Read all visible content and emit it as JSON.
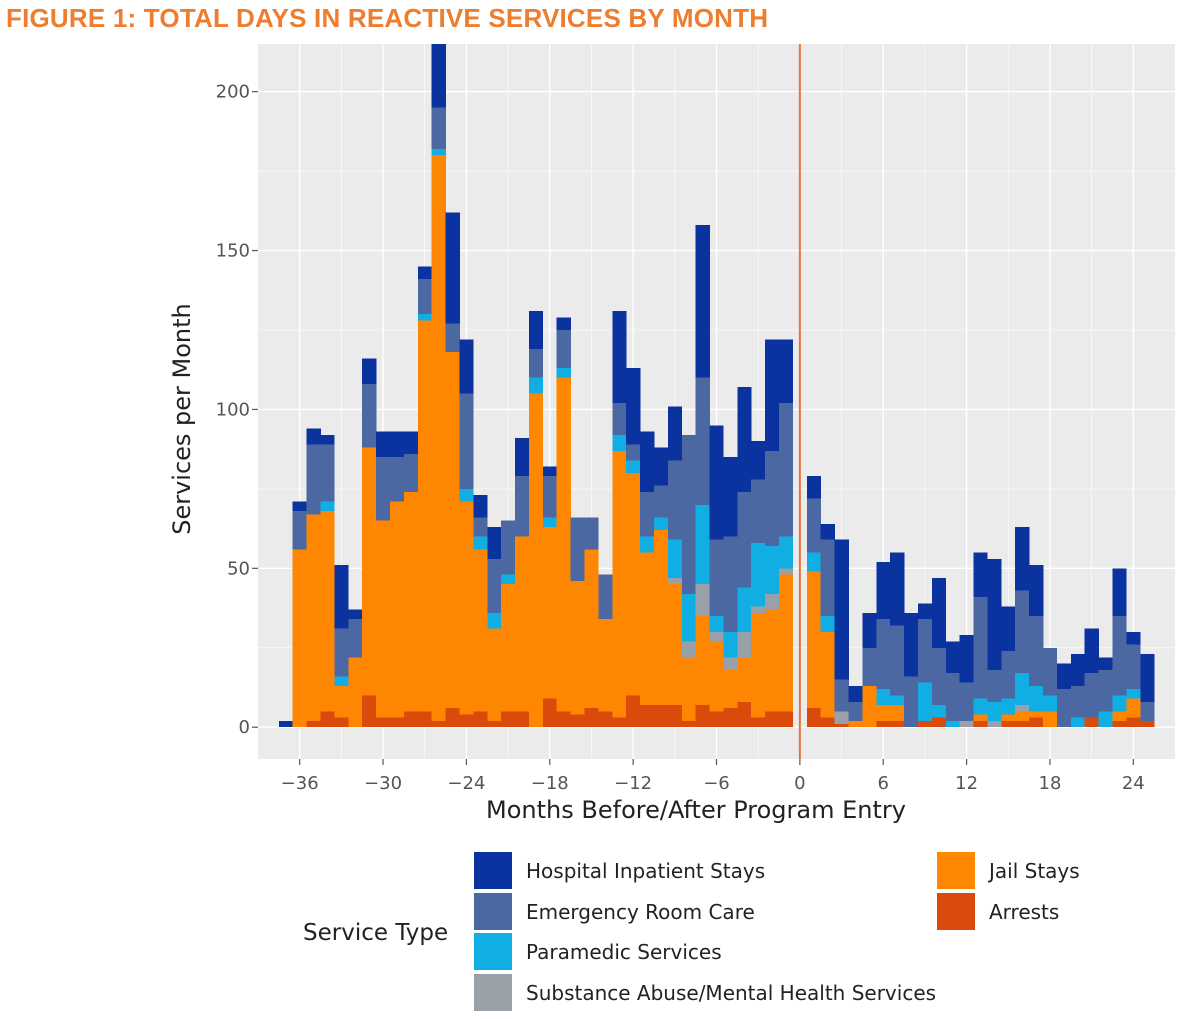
{
  "figure": {
    "title": "FIGURE 1: TOTAL DAYS IN REACTIVE SERVICES BY MONTH"
  },
  "colors": {
    "hospital": "#0b33a0",
    "er": "#4b68a3",
    "paramedic": "#11aee3",
    "substance": "#9aa0a8",
    "jail": "#ff8600",
    "arrests": "#d94a0b",
    "program_entry_line": "#e8743b",
    "panel": "#ebebeb",
    "grid": "#ffffff"
  },
  "chart_data": {
    "type": "bar",
    "stacked": true,
    "xlabel": "Months Before/After Program Entry",
    "ylabel": "Services per Month",
    "xlim": [
      -39,
      27
    ],
    "ylim": [
      -10,
      215
    ],
    "xticks": [
      -36,
      -30,
      -24,
      -18,
      -12,
      -6,
      0,
      6,
      12,
      18,
      24
    ],
    "yticks": [
      0,
      50,
      100,
      150,
      200
    ],
    "grid": true,
    "reference_line_x": 0,
    "legend_title": "Service Type",
    "legend_position": "bottom",
    "x": [
      -37,
      -36,
      -35,
      -34,
      -33,
      -32,
      -31,
      -30,
      -29,
      -28,
      -27,
      -26,
      -25,
      -24,
      -23,
      -22,
      -21,
      -20,
      -19,
      -18,
      -17,
      -16,
      -15,
      -14,
      -13,
      -12,
      -11,
      -10,
      -9,
      -8,
      -7,
      -6,
      -5,
      -4,
      -3,
      -2,
      -1,
      1,
      2,
      3,
      4,
      5,
      6,
      7,
      8,
      9,
      10,
      11,
      12,
      13,
      14,
      15,
      16,
      17,
      18,
      19,
      20,
      21,
      22,
      23,
      24,
      25
    ],
    "series": [
      {
        "name": "Arrests",
        "color_key": "arrests",
        "values": [
          0,
          0,
          2,
          5,
          3,
          0,
          10,
          3,
          3,
          5,
          5,
          2,
          6,
          4,
          5,
          2,
          5,
          5,
          0,
          9,
          5,
          4,
          6,
          5,
          3,
          10,
          7,
          7,
          7,
          2,
          7,
          5,
          6,
          8,
          3,
          5,
          5,
          6,
          3,
          1,
          0,
          0,
          2,
          2,
          0,
          2,
          3,
          0,
          0,
          2,
          0,
          2,
          2,
          3,
          0,
          0,
          0,
          3,
          0,
          2,
          3,
          2
        ]
      },
      {
        "name": "Jail Stays",
        "color_key": "jail",
        "values": [
          0,
          56,
          65,
          63,
          10,
          22,
          78,
          62,
          68,
          69,
          123,
          178,
          112,
          67,
          51,
          29,
          40,
          55,
          105,
          54,
          105,
          42,
          50,
          29,
          84,
          70,
          48,
          55,
          38,
          20,
          28,
          22,
          12,
          14,
          33,
          32,
          43,
          43,
          27,
          0,
          2,
          13,
          5,
          5,
          0,
          0,
          0,
          0,
          0,
          2,
          0,
          2,
          3,
          2,
          5,
          0,
          0,
          0,
          0,
          3,
          6,
          0
        ]
      },
      {
        "name": "Substance Abuse/Mental Health Services",
        "color_key": "substance",
        "values": [
          0,
          0,
          0,
          0,
          0,
          0,
          0,
          0,
          0,
          0,
          0,
          0,
          0,
          0,
          0,
          0,
          0,
          0,
          0,
          0,
          0,
          0,
          0,
          0,
          0,
          0,
          0,
          0,
          2,
          5,
          10,
          3,
          4,
          8,
          2,
          5,
          2,
          0,
          0,
          4,
          0,
          0,
          0,
          0,
          0,
          0,
          0,
          0,
          2,
          0,
          2,
          0,
          2,
          0,
          0,
          0,
          0,
          0,
          0,
          0,
          0,
          0
        ]
      },
      {
        "name": "Paramedic Services",
        "color_key": "paramedic",
        "values": [
          0,
          0,
          0,
          3,
          3,
          0,
          0,
          0,
          0,
          0,
          2,
          2,
          0,
          4,
          4,
          5,
          3,
          0,
          5,
          3,
          3,
          0,
          0,
          0,
          5,
          4,
          5,
          4,
          12,
          15,
          25,
          5,
          8,
          14,
          20,
          15,
          10,
          6,
          5,
          0,
          0,
          0,
          5,
          3,
          0,
          12,
          4,
          2,
          0,
          5,
          6,
          5,
          10,
          8,
          5,
          0,
          3,
          0,
          5,
          5,
          3,
          0
        ]
      },
      {
        "name": "Emergency Room Care",
        "color_key": "er",
        "values": [
          0,
          12,
          22,
          18,
          15,
          12,
          20,
          20,
          14,
          12,
          11,
          13,
          9,
          30,
          6,
          17,
          17,
          19,
          9,
          13,
          12,
          20,
          10,
          14,
          10,
          5,
          14,
          10,
          25,
          50,
          40,
          24,
          30,
          30,
          20,
          30,
          42,
          17,
          24,
          10,
          6,
          12,
          22,
          22,
          16,
          20,
          18,
          15,
          12,
          32,
          10,
          15,
          26,
          22,
          15,
          12,
          10,
          14,
          13,
          25,
          14,
          6
        ]
      },
      {
        "name": "Hospital Inpatient Stays",
        "color_key": "hospital",
        "values": [
          2,
          3,
          5,
          3,
          20,
          3,
          8,
          8,
          8,
          7,
          4,
          20,
          35,
          17,
          7,
          10,
          0,
          12,
          12,
          3,
          4,
          0,
          0,
          0,
          29,
          24,
          19,
          12,
          17,
          0,
          48,
          36,
          25,
          33,
          12,
          35,
          20,
          7,
          5,
          44,
          5,
          11,
          18,
          23,
          20,
          5,
          22,
          10,
          15,
          14,
          35,
          14,
          20,
          16,
          0,
          8,
          10,
          14,
          4,
          15,
          4,
          15
        ]
      }
    ]
  },
  "legend": {
    "title": "Service Type",
    "items": [
      {
        "label": "Hospital Inpatient Stays",
        "color_key": "hospital"
      },
      {
        "label": "Emergency Room Care",
        "color_key": "er"
      },
      {
        "label": "Paramedic Services",
        "color_key": "paramedic"
      },
      {
        "label": "Substance Abuse/Mental Health Services",
        "color_key": "substance"
      },
      {
        "label": "Jail Stays",
        "color_key": "jail"
      },
      {
        "label": "Arrests",
        "color_key": "arrests"
      }
    ]
  }
}
